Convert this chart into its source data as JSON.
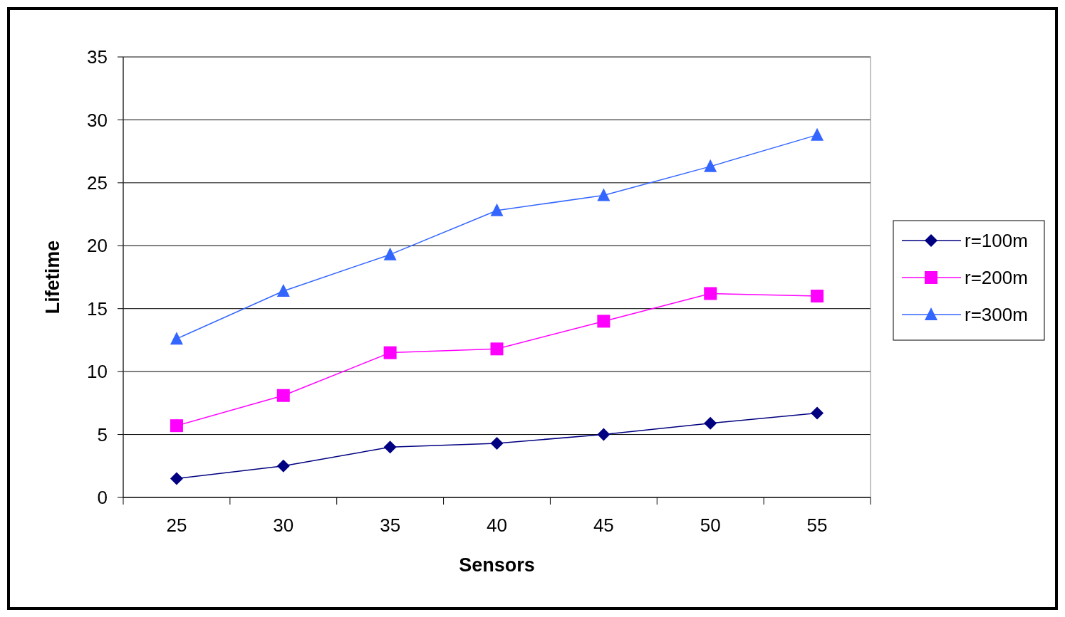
{
  "chart_data": {
    "type": "line",
    "xlabel": "Sensors",
    "ylabel": "Lifetime",
    "categories": [
      "25",
      "30",
      "35",
      "40",
      "45",
      "50",
      "55"
    ],
    "series": [
      {
        "name": "r=100m",
        "color": "#000080",
        "marker": "diamond",
        "values": [
          1.5,
          2.5,
          4.0,
          4.3,
          5.0,
          5.9,
          6.7
        ]
      },
      {
        "name": "r=200m",
        "color": "#ff00ff",
        "marker": "square",
        "values": [
          5.7,
          8.1,
          11.5,
          11.8,
          14.0,
          16.2,
          16.0
        ]
      },
      {
        "name": "r=300m",
        "color": "#3366ff",
        "marker": "triangle",
        "values": [
          12.6,
          16.4,
          19.3,
          22.8,
          24.0,
          26.3,
          28.8
        ]
      }
    ],
    "ylim": [
      0,
      35
    ],
    "yticks": [
      0,
      5,
      10,
      15,
      20,
      25,
      30,
      35
    ],
    "grid": "y",
    "legend": "right"
  }
}
